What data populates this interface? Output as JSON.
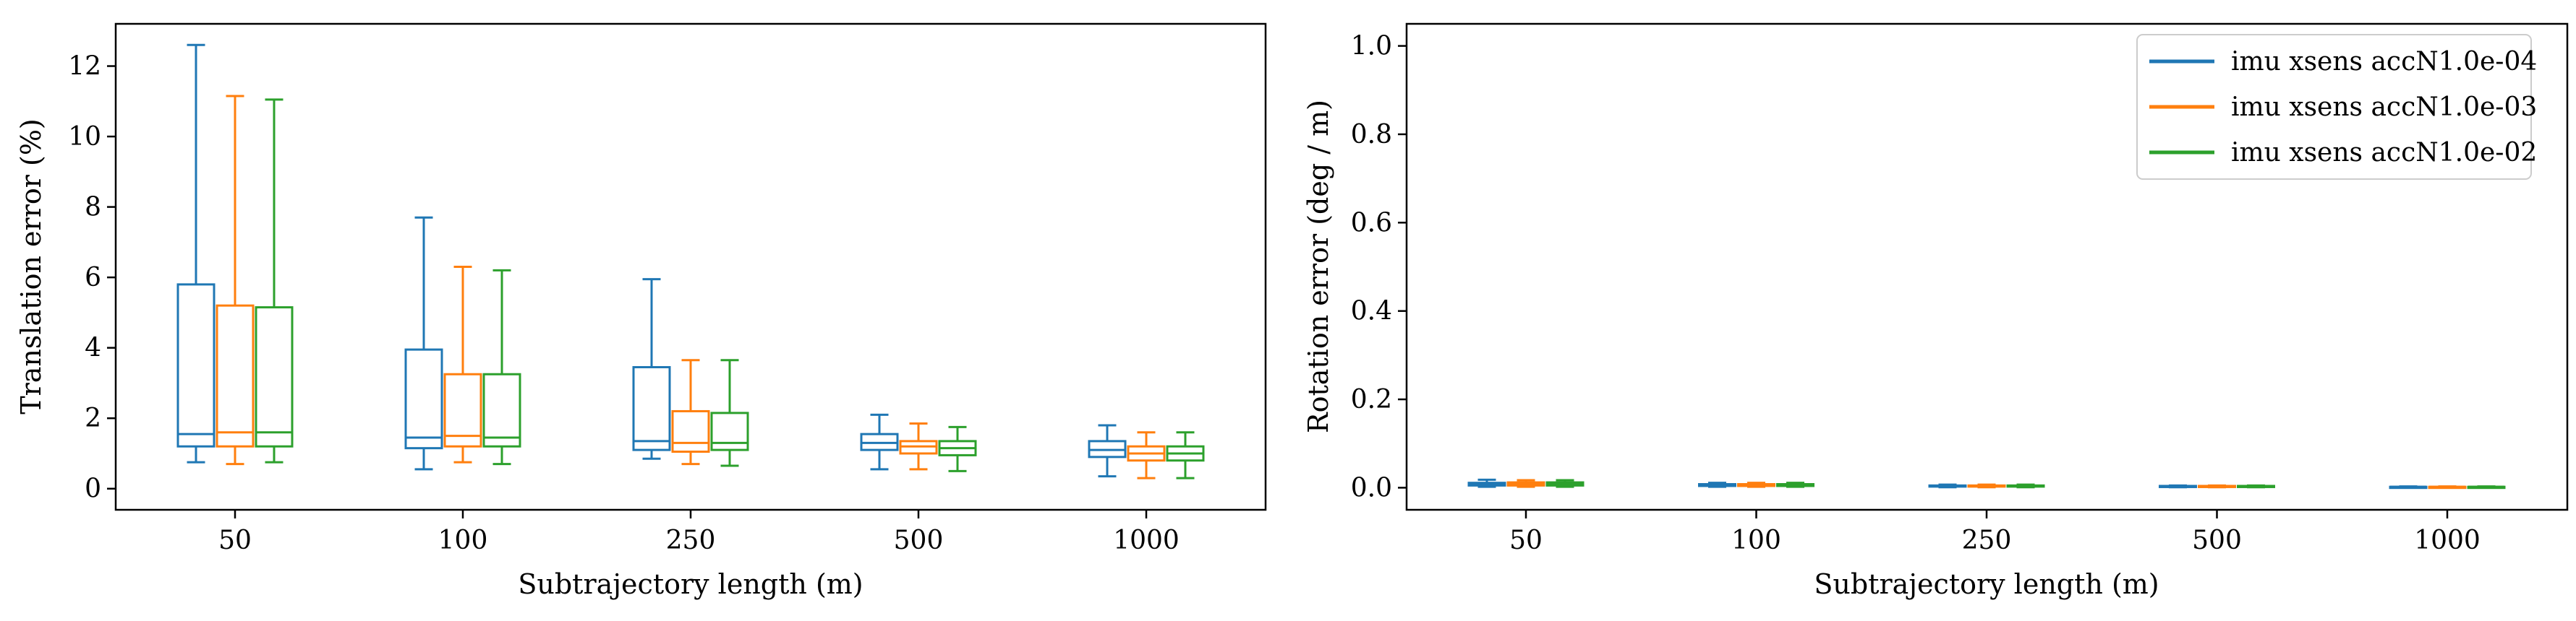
{
  "chart_data": [
    {
      "type": "box",
      "xlabel": "Subtrajectory length (m)",
      "ylabel": "Translation error (%)",
      "ylim": [
        -0.6,
        13.2
      ],
      "yticks": [
        0,
        2,
        4,
        6,
        8,
        10,
        12
      ],
      "categories": [
        "50",
        "100",
        "250",
        "500",
        "1000"
      ],
      "grid": false,
      "series": [
        {
          "name": "imu xsens accN1.0e-04",
          "color": "#1f77b4",
          "boxes": [
            {
              "whislo": 0.75,
              "q1": 1.2,
              "med": 1.55,
              "q3": 5.8,
              "whishi": 12.6
            },
            {
              "whislo": 0.55,
              "q1": 1.15,
              "med": 1.45,
              "q3": 3.95,
              "whishi": 7.7
            },
            {
              "whislo": 0.85,
              "q1": 1.1,
              "med": 1.35,
              "q3": 3.45,
              "whishi": 5.95
            },
            {
              "whislo": 0.55,
              "q1": 1.1,
              "med": 1.3,
              "q3": 1.55,
              "whishi": 2.1
            },
            {
              "whislo": 0.35,
              "q1": 0.9,
              "med": 1.1,
              "q3": 1.35,
              "whishi": 1.8
            }
          ]
        },
        {
          "name": "imu xsens accN1.0e-03",
          "color": "#ff7f0e",
          "boxes": [
            {
              "whislo": 0.7,
              "q1": 1.2,
              "med": 1.6,
              "q3": 5.2,
              "whishi": 11.15
            },
            {
              "whislo": 0.75,
              "q1": 1.2,
              "med": 1.5,
              "q3": 3.25,
              "whishi": 6.3
            },
            {
              "whislo": 0.7,
              "q1": 1.05,
              "med": 1.3,
              "q3": 2.2,
              "whishi": 3.65
            },
            {
              "whislo": 0.55,
              "q1": 1.0,
              "med": 1.2,
              "q3": 1.35,
              "whishi": 1.85
            },
            {
              "whislo": 0.3,
              "q1": 0.8,
              "med": 1.0,
              "q3": 1.2,
              "whishi": 1.6
            }
          ]
        },
        {
          "name": "imu xsens accN1.0e-02",
          "color": "#2ca02c",
          "boxes": [
            {
              "whislo": 0.75,
              "q1": 1.2,
              "med": 1.6,
              "q3": 5.15,
              "whishi": 11.05
            },
            {
              "whislo": 0.7,
              "q1": 1.2,
              "med": 1.45,
              "q3": 3.25,
              "whishi": 6.2
            },
            {
              "whislo": 0.65,
              "q1": 1.1,
              "med": 1.3,
              "q3": 2.15,
              "whishi": 3.65
            },
            {
              "whislo": 0.5,
              "q1": 0.95,
              "med": 1.15,
              "q3": 1.35,
              "whishi": 1.75
            },
            {
              "whislo": 0.3,
              "q1": 0.8,
              "med": 1.0,
              "q3": 1.2,
              "whishi": 1.6
            }
          ]
        }
      ]
    },
    {
      "type": "box",
      "xlabel": "Subtrajectory length (m)",
      "ylabel": "Rotation error (deg / m)",
      "ylim": [
        -0.05,
        1.05
      ],
      "yticks": [
        0.0,
        0.2,
        0.4,
        0.6,
        0.8,
        1.0
      ],
      "ytick_labels": [
        "0.0",
        "0.2",
        "0.4",
        "0.6",
        "0.8",
        "1.0"
      ],
      "categories": [
        "50",
        "100",
        "250",
        "500",
        "1000"
      ],
      "grid": false,
      "legend": {
        "position": "top-right"
      },
      "series": [
        {
          "name": "imu xsens accN1.0e-04",
          "color": "#1f77b4",
          "boxes": [
            {
              "whislo": 0.002,
              "q1": 0.005,
              "med": 0.008,
              "q3": 0.011,
              "whishi": 0.018
            },
            {
              "whislo": 0.002,
              "q1": 0.004,
              "med": 0.006,
              "q3": 0.008,
              "whishi": 0.011
            },
            {
              "whislo": 0.001,
              "q1": 0.003,
              "med": 0.004,
              "q3": 0.005,
              "whishi": 0.007
            },
            {
              "whislo": 0.001,
              "q1": 0.002,
              "med": 0.003,
              "q3": 0.004,
              "whishi": 0.005
            },
            {
              "whislo": 0.001,
              "q1": 0.001,
              "med": 0.002,
              "q3": 0.002,
              "whishi": 0.003
            }
          ]
        },
        {
          "name": "imu xsens accN1.0e-03",
          "color": "#ff7f0e",
          "boxes": [
            {
              "whislo": 0.002,
              "q1": 0.005,
              "med": 0.009,
              "q3": 0.012,
              "whishi": 0.017
            },
            {
              "whislo": 0.002,
              "q1": 0.004,
              "med": 0.006,
              "q3": 0.008,
              "whishi": 0.011
            },
            {
              "whislo": 0.001,
              "q1": 0.003,
              "med": 0.004,
              "q3": 0.005,
              "whishi": 0.007
            },
            {
              "whislo": 0.001,
              "q1": 0.002,
              "med": 0.003,
              "q3": 0.004,
              "whishi": 0.005
            },
            {
              "whislo": 0.001,
              "q1": 0.001,
              "med": 0.002,
              "q3": 0.002,
              "whishi": 0.003
            }
          ]
        },
        {
          "name": "imu xsens accN1.0e-02",
          "color": "#2ca02c",
          "boxes": [
            {
              "whislo": 0.002,
              "q1": 0.005,
              "med": 0.008,
              "q3": 0.012,
              "whishi": 0.017
            },
            {
              "whislo": 0.002,
              "q1": 0.004,
              "med": 0.006,
              "q3": 0.008,
              "whishi": 0.011
            },
            {
              "whislo": 0.001,
              "q1": 0.003,
              "med": 0.004,
              "q3": 0.005,
              "whishi": 0.007
            },
            {
              "whislo": 0.001,
              "q1": 0.002,
              "med": 0.003,
              "q3": 0.004,
              "whishi": 0.005
            },
            {
              "whislo": 0.001,
              "q1": 0.001,
              "med": 0.002,
              "q3": 0.002,
              "whishi": 0.003
            }
          ]
        }
      ]
    }
  ]
}
